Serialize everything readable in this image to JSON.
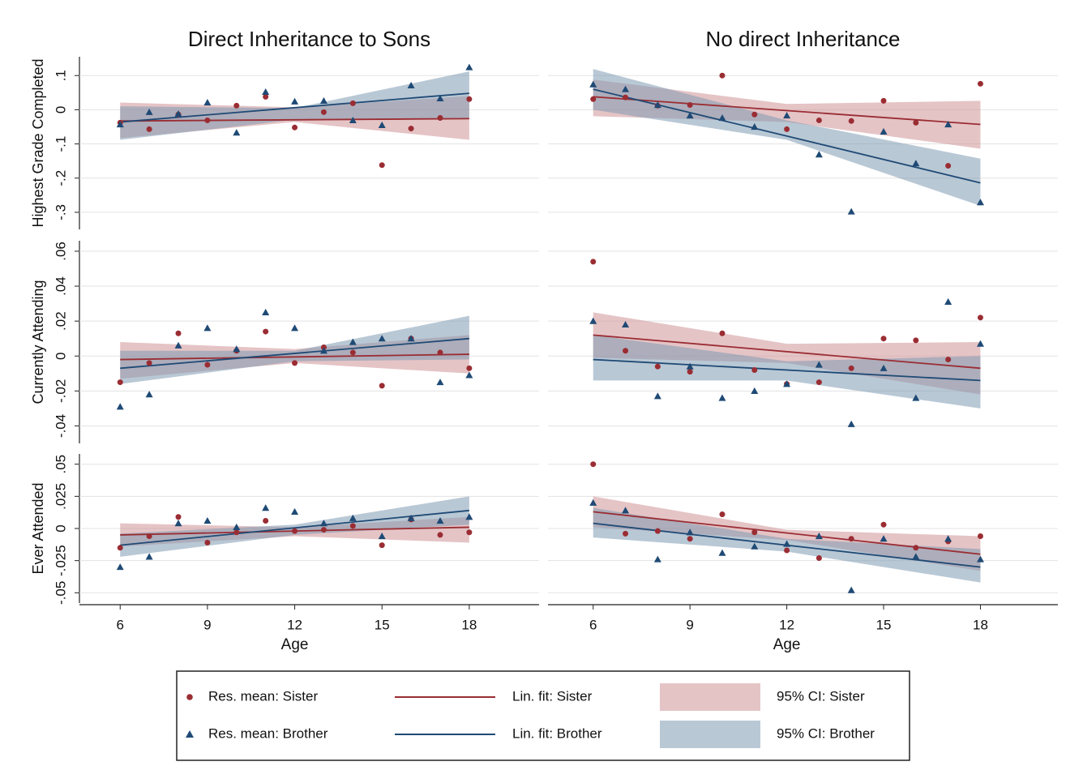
{
  "chart_data": {
    "type": "scatter",
    "columns": [
      "Direct Inheritance to Sons",
      "No direct Inheritance"
    ],
    "xlabel": "Age",
    "x": [
      6,
      7,
      8,
      9,
      10,
      11,
      12,
      13,
      14,
      15,
      16,
      17,
      18
    ],
    "xlim": [
      4.6,
      20.4
    ],
    "xticks": [
      6,
      9,
      12,
      15,
      18
    ],
    "fit_x": [
      6,
      18
    ],
    "ci_x": [
      6,
      12,
      18
    ],
    "grid": true,
    "groups": [
      {
        "color": "#9a2d33",
        "ci_color": "#cf9397",
        "marker": "circle",
        "points_label": "Res. mean: Sister",
        "fit_label": "Lin. fit: Sister",
        "ci_label": "95% CI: Sister"
      },
      {
        "color": "#1f4a75",
        "ci_color": "#7f9ab3",
        "marker": "triangle",
        "points_label": "Res. mean: Brother",
        "fit_label": "Lin. fit: Brother",
        "ci_label": "95% CI: Brother"
      }
    ],
    "rows": [
      {
        "ylabel": "Highest Grade Completed",
        "ylim": [
          -0.35,
          0.155
        ],
        "yticks": [
          {
            "value": 0.1,
            "label": ".1"
          },
          0,
          {
            "value": -0.1,
            "label": "-.1"
          },
          {
            "value": -0.2,
            "label": "-.2"
          },
          {
            "value": -0.3,
            "label": "-.3"
          }
        ],
        "panels": [
          {
            "series": [
              {
                "values": [
                  -0.038,
                  -0.057,
                  -0.014,
                  -0.031,
                  0.012,
                  0.038,
                  -0.052,
                  -0.007,
                  0.019,
                  -0.162,
                  -0.055,
                  -0.024,
                  0.031
                ],
                "fit": [
                  -0.033,
                  -0.026
                ],
                "ci_lower": [
                  -0.083,
                  -0.036,
                  -0.088
                ],
                "ci_upper": [
                  0.021,
                  0.007,
                  0.04
                ]
              },
              {
                "values": [
                  -0.043,
                  -0.007,
                  -0.012,
                  0.021,
                  -0.067,
                  0.052,
                  0.024,
                  0.026,
                  -0.031,
                  -0.045,
                  0.071,
                  0.033,
                  0.124
                ],
                "fit": [
                  -0.036,
                  0.048
                ],
                "ci_lower": [
                  -0.088,
                  -0.029,
                  -0.024
                ],
                "ci_upper": [
                  0.01,
                  0.005,
                  0.112
                ]
              }
            ]
          },
          {
            "series": [
              {
                "values": [
                  0.031,
                  0.036,
                  0.012,
                  0.014,
                  0.1,
                  -0.014,
                  -0.057,
                  -0.031,
                  -0.033,
                  0.026,
                  -0.038,
                  -0.164,
                  0.076
                ],
                "fit": [
                  0.038,
                  -0.043
                ],
                "ci_lower": [
                  -0.019,
                  -0.036,
                  -0.114
                ],
                "ci_upper": [
                  0.088,
                  0.017,
                  0.026
                ]
              },
              {
                "values": [
                  0.074,
                  0.06,
                  0.014,
                  -0.017,
                  -0.024,
                  -0.05,
                  -0.017,
                  -0.131,
                  -0.298,
                  -0.064,
                  -0.157,
                  -0.043,
                  -0.271
                ],
                "fit": [
                  0.06,
                  -0.214
                ],
                "ci_lower": [
                  0,
                  -0.088,
                  -0.281
                ],
                "ci_upper": [
                  0.119,
                  -0.031,
                  -0.143
                ]
              }
            ]
          }
        ]
      },
      {
        "ylabel": "Currently Attending",
        "ylim": [
          -0.05,
          0.066
        ],
        "yticks": [
          {
            "value": 0.06,
            "label": ".06"
          },
          {
            "value": 0.04,
            "label": ".04"
          },
          {
            "value": 0.02,
            "label": ".02"
          },
          0,
          {
            "value": -0.02,
            "label": "-.02"
          },
          {
            "value": -0.04,
            "label": "-.04"
          }
        ],
        "panels": [
          {
            "series": [
              {
                "values": [
                  -0.015,
                  -0.004,
                  0.013,
                  -0.005,
                  0.003,
                  0.014,
                  -0.004,
                  0.005,
                  0.002,
                  -0.017,
                  0.01,
                  0.002,
                  -0.007
                ],
                "fit": [
                  -0.002,
                  0.001
                ],
                "ci_lower": [
                  -0.013,
                  -0.004,
                  -0.01
                ],
                "ci_upper": [
                  0.008,
                  0.004,
                  0.012
                ]
              },
              {
                "values": [
                  -0.029,
                  -0.022,
                  0.006,
                  0.016,
                  0.004,
                  0.025,
                  0.016,
                  0.003,
                  0.008,
                  0.01,
                  0.01,
                  -0.015,
                  -0.011
                ],
                "fit": [
                  -0.007,
                  0.01
                ],
                "ci_lower": [
                  -0.016,
                  -0.003,
                  -0.002
                ],
                "ci_upper": [
                  0.003,
                  0.003,
                  0.023
                ]
              }
            ]
          },
          {
            "series": [
              {
                "values": [
                  0.054,
                  0.003,
                  -0.006,
                  -0.009,
                  0.013,
                  -0.008,
                  -0.016,
                  -0.015,
                  -0.007,
                  0.01,
                  0.009,
                  -0.002,
                  0.022
                ],
                "fit": [
                  0.012,
                  -0.007
                ],
                "ci_lower": [
                  -0.001,
                  -0.004,
                  -0.022
                ],
                "ci_upper": [
                  0.025,
                  0.007,
                  0.008
                ]
              },
              {
                "values": [
                  0.02,
                  0.018,
                  -0.023,
                  -0.006,
                  -0.024,
                  -0.02,
                  -0.016,
                  -0.005,
                  -0.039,
                  -0.007,
                  -0.024,
                  0.031,
                  0.007
                ],
                "fit": [
                  -0.002,
                  -0.014
                ],
                "ci_lower": [
                  -0.014,
                  -0.014,
                  -0.03
                ],
                "ci_upper": [
                  0.012,
                  -0.003,
                  0
                ]
              }
            ]
          }
        ]
      },
      {
        "ylabel": "Ever Attended",
        "ylim": [
          -0.058,
          0.058
        ],
        "yticks": [
          {
            "value": 0.05,
            "label": ".05"
          },
          {
            "value": 0.025,
            "label": ".025"
          },
          0,
          {
            "value": -0.025,
            "label": "-.025"
          },
          {
            "value": -0.05,
            "label": "-.05"
          }
        ],
        "panels": [
          {
            "series": [
              {
                "values": [
                  -0.015,
                  -0.006,
                  0.009,
                  -0.011,
                  -0.003,
                  0.006,
                  -0.002,
                  -0.001,
                  0.002,
                  -0.013,
                  0.007,
                  -0.005,
                  -0.003
                ],
                "fit": [
                  -0.005,
                  0.001
                ],
                "ci_lower": [
                  -0.014,
                  -0.006,
                  -0.011
                ],
                "ci_upper": [
                  0.004,
                  0.001,
                  0.009
                ]
              },
              {
                "values": [
                  -0.03,
                  -0.022,
                  0.004,
                  0.006,
                  0.001,
                  0.016,
                  0.013,
                  0.004,
                  0.008,
                  -0.006,
                  0.008,
                  0.006,
                  0.009
                ],
                "fit": [
                  -0.013,
                  0.014
                ],
                "ci_lower": [
                  -0.022,
                  -0.005,
                  0.003
                ],
                "ci_upper": [
                  -0.004,
                  0.003,
                  0.025
                ]
              }
            ]
          },
          {
            "series": [
              {
                "values": [
                  0.05,
                  -0.004,
                  -0.002,
                  -0.008,
                  0.011,
                  -0.003,
                  -0.017,
                  -0.023,
                  -0.008,
                  0.003,
                  -0.015,
                  -0.01,
                  -0.006
                ],
                "fit": [
                  0.013,
                  -0.02
                ],
                "ci_lower": [
                  0.001,
                  -0.009,
                  -0.033
                ],
                "ci_upper": [
                  0.025,
                  -0.001,
                  -0.006
                ]
              },
              {
                "values": [
                  0.02,
                  0.014,
                  -0.024,
                  -0.003,
                  -0.019,
                  -0.014,
                  -0.012,
                  -0.006,
                  -0.048,
                  -0.008,
                  -0.022,
                  -0.008,
                  -0.024
                ],
                "fit": [
                  0.004,
                  -0.03
                ],
                "ci_lower": [
                  -0.007,
                  -0.018,
                  -0.042
                ],
                "ci_upper": [
                  0.016,
                  -0.008,
                  -0.016
                ]
              }
            ]
          }
        ]
      }
    ]
  }
}
